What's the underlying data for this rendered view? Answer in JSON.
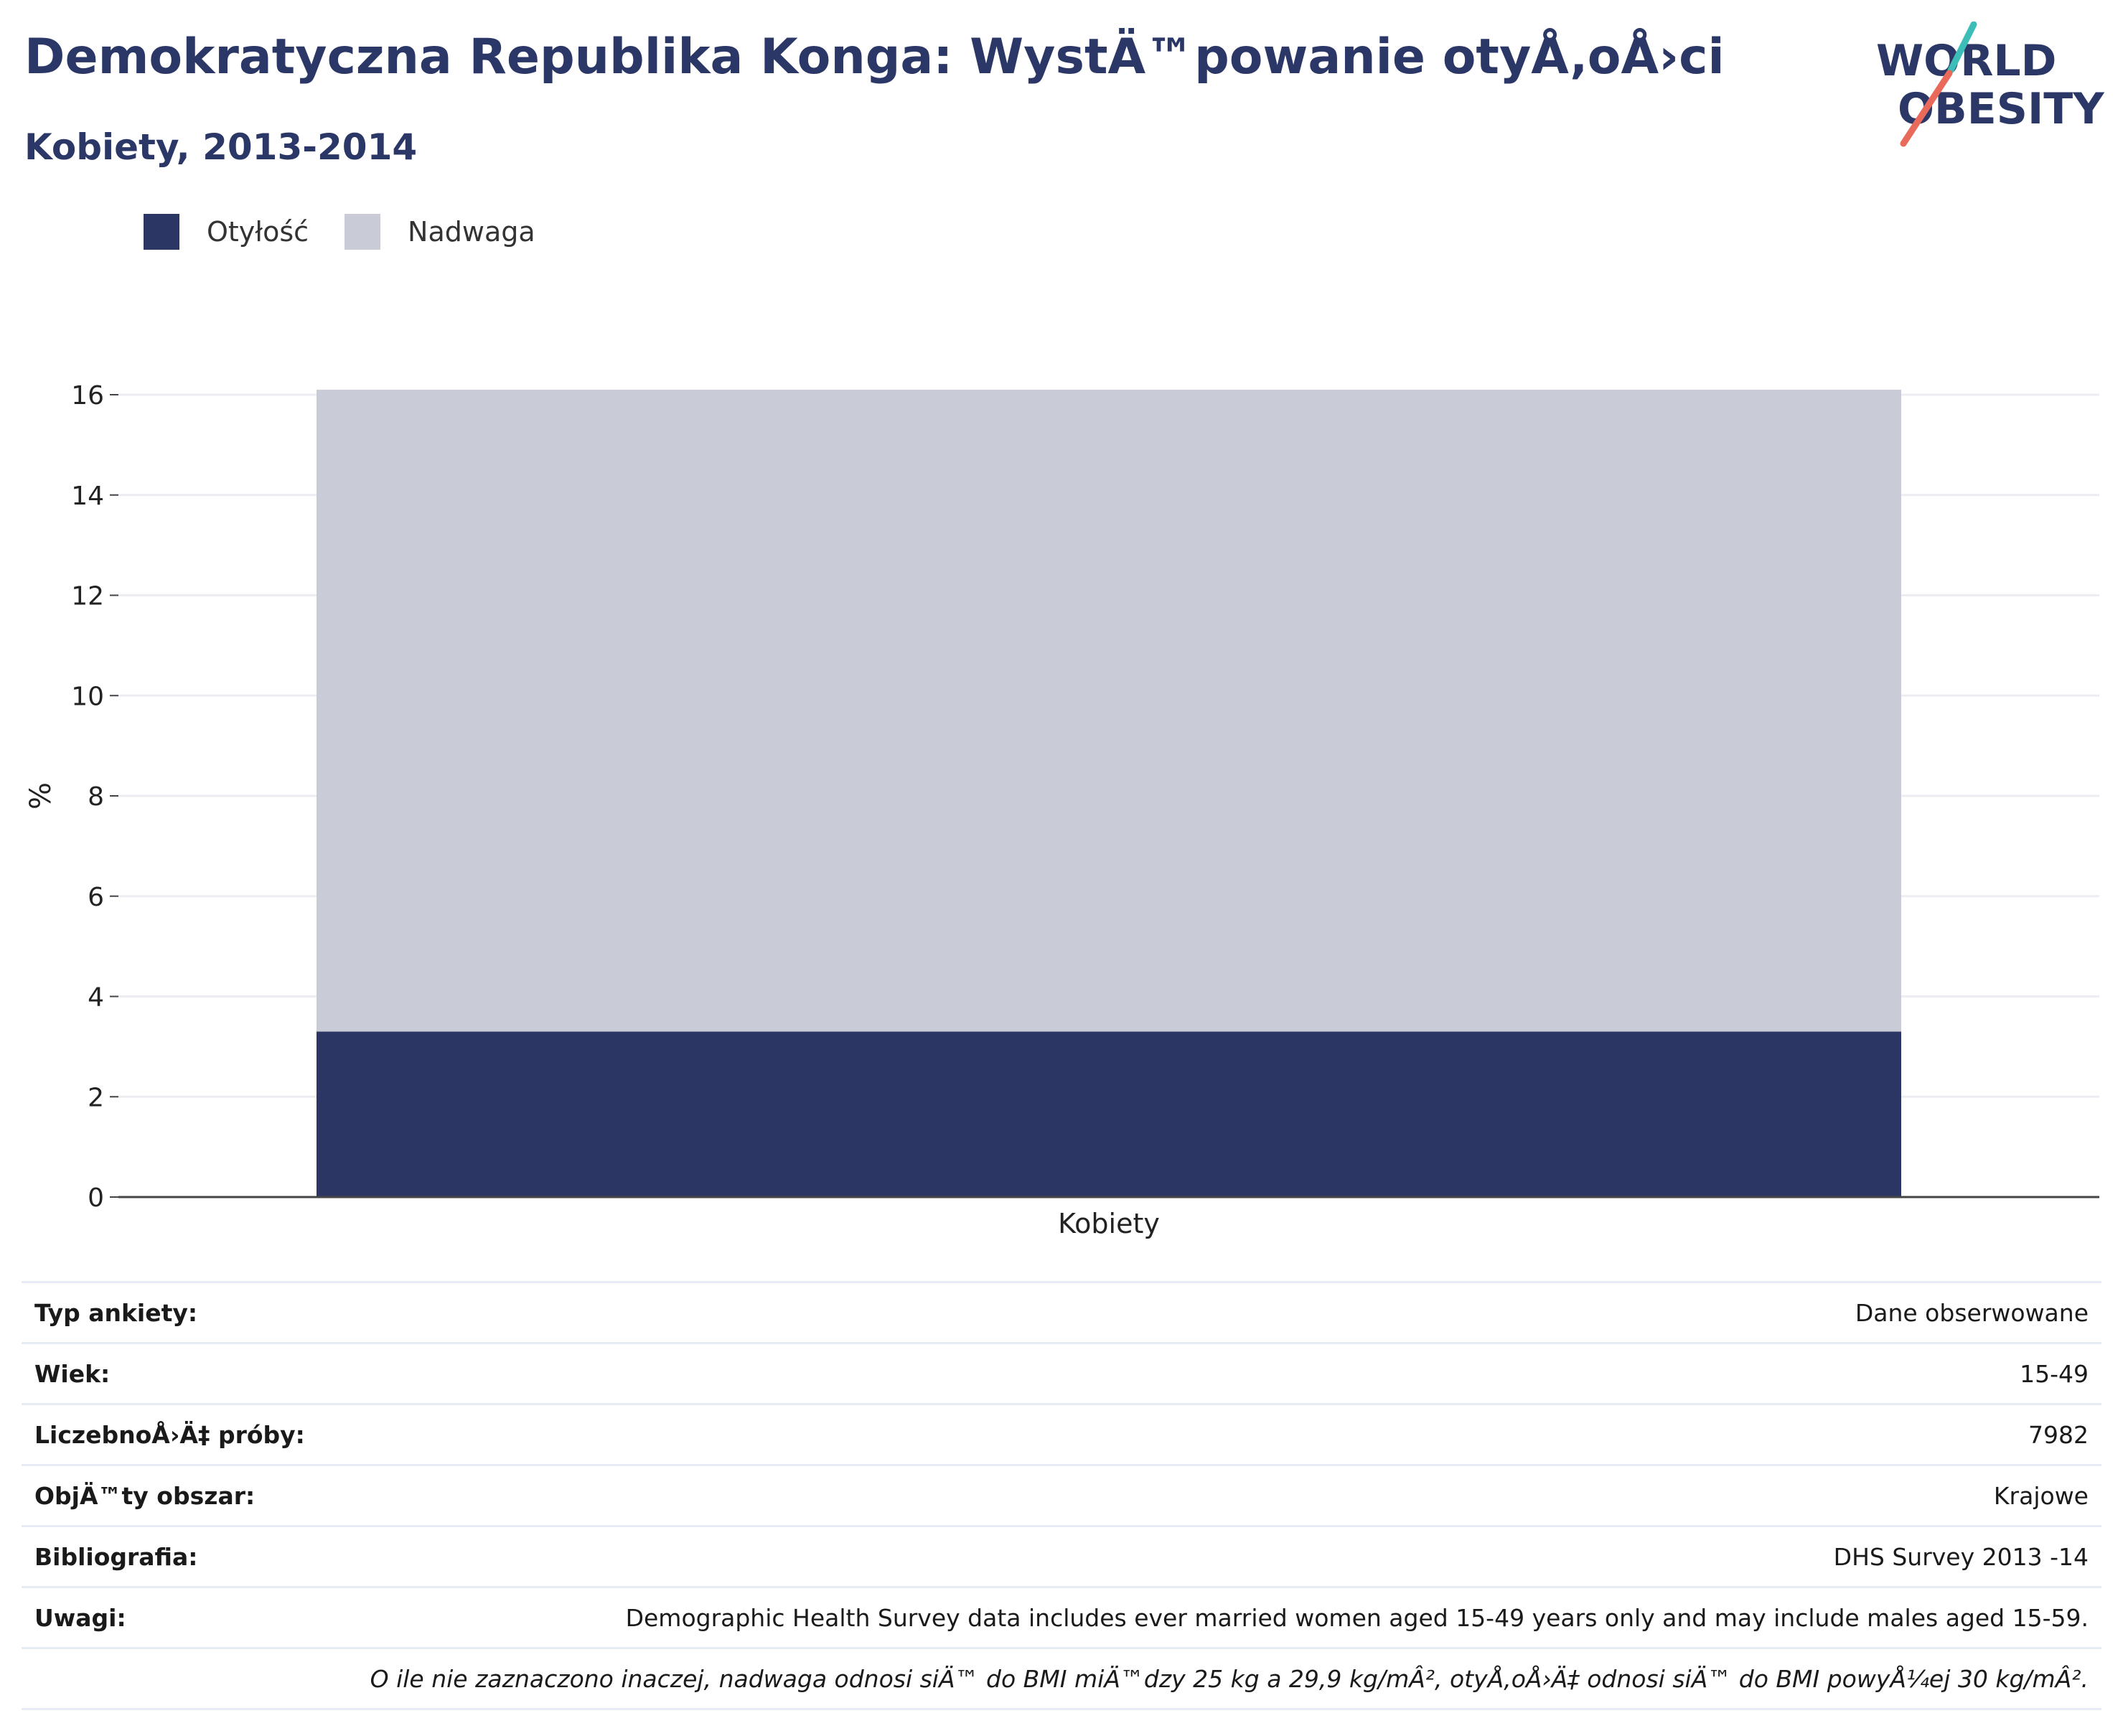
{
  "title": "Demokratyczna Republika Konga: WystÄ™powanie otyÅ‚oÅ›ci",
  "subtitle": "Kobiety, 2013-2014",
  "logo": {
    "line1": "WORLD",
    "line2": "OBESITY"
  },
  "colors": {
    "obesity": "#2b3664",
    "overweight": "#c9ccd7",
    "title": "#2b3766",
    "accent_teal": "#3dbdb7",
    "accent_coral": "#e96a5a"
  },
  "legend": [
    {
      "label": "Otyłość",
      "color": "#2b3664"
    },
    {
      "label": "Nadwaga",
      "color": "#c9ccd7"
    }
  ],
  "chart_data": {
    "type": "bar",
    "stacked": true,
    "categories": [
      "Kobiety"
    ],
    "series": [
      {
        "name": "Otyłość",
        "values": [
          3.3
        ]
      },
      {
        "name": "Nadwaga",
        "values": [
          12.8
        ]
      }
    ],
    "ylabel": "%",
    "xlabel": "",
    "ylim": [
      0,
      16
    ],
    "yticks": [
      0,
      2,
      4,
      6,
      8,
      10,
      12,
      14,
      16
    ],
    "grid": true,
    "legend_position": "top-left"
  },
  "info_rows": [
    {
      "label": "Typ ankiety:",
      "value": "Dane obserwowane"
    },
    {
      "label": "Wiek:",
      "value": "15-49"
    },
    {
      "label": "LiczebnoÅ›Ä‡ próby:",
      "value": "7982"
    },
    {
      "label": "ObjÄ™ty obszar:",
      "value": "Krajowe"
    },
    {
      "label": "Bibliografia:",
      "value": "DHS Survey 2013 -14"
    },
    {
      "label": "Uwagi:",
      "value": "Demographic Health Survey data includes ever married women aged 15-49 years only and may include males aged 15-59."
    },
    {
      "label": "",
      "value": "O ile nie zaznaczono inaczej, nadwaga odnosi siÄ™ do BMI miÄ™dzy 25 kg a 29,9 kg/mÂ², otyÅ‚oÅ›Ä‡ odnosi siÄ™ do BMI powyÅ¼ej 30 kg/mÂ².",
      "italic": true
    }
  ]
}
